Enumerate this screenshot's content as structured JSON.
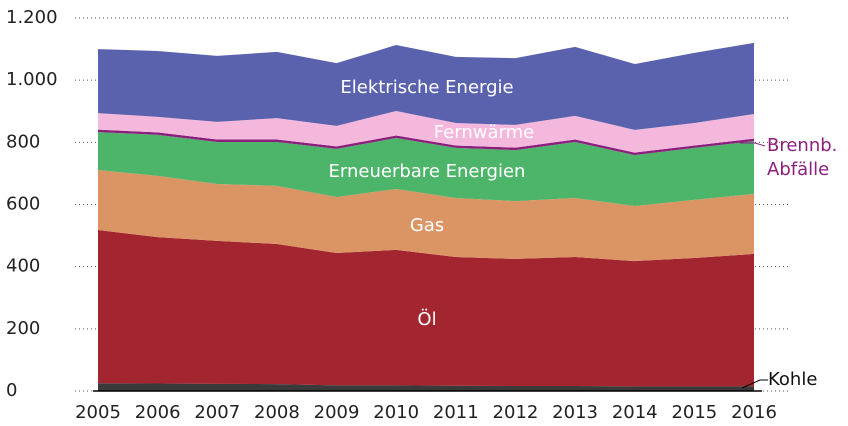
{
  "chart_data": {
    "type": "stacked_area",
    "categories": [
      "2005",
      "2006",
      "2007",
      "2008",
      "2009",
      "2010",
      "2011",
      "2012",
      "2013",
      "2014",
      "2015",
      "2016"
    ],
    "series": [
      {
        "name": "Kohle",
        "color": "#3a3a3a",
        "values": [
          25,
          24,
          23,
          22,
          18,
          18,
          17,
          16,
          16,
          15,
          15,
          15
        ]
      },
      {
        "name": "Öl",
        "color": "#a32530",
        "values": [
          493,
          471,
          460,
          451,
          426,
          436,
          414,
          409,
          415,
          403,
          413,
          426
        ]
      },
      {
        "name": "Gas",
        "color": "#db9564",
        "values": [
          193,
          197,
          183,
          187,
          180,
          196,
          190,
          186,
          190,
          177,
          187,
          193
        ]
      },
      {
        "name": "Erneuerbare Energien",
        "color": "#4db56a",
        "values": [
          122,
          132,
          135,
          141,
          155,
          164,
          161,
          164,
          180,
          164,
          167,
          170
        ]
      },
      {
        "name": "Brennb. Abfälle",
        "color": "#8c1f7e",
        "values": [
          8,
          8,
          8,
          8,
          8,
          8,
          8,
          8,
          8,
          8,
          8,
          8
        ]
      },
      {
        "name": "Fernwärme",
        "color": "#f4b8dc",
        "values": [
          53,
          50,
          57,
          69,
          66,
          79,
          72,
          73,
          76,
          73,
          72,
          79
        ]
      },
      {
        "name": "Elektrische Energie",
        "color": "#5a62ad",
        "values": [
          206,
          212,
          212,
          213,
          202,
          212,
          213,
          215,
          222,
          212,
          226,
          229
        ]
      }
    ],
    "ylim": [
      0,
      1200
    ],
    "yticks": [
      0,
      200,
      400,
      600,
      800,
      {
        "value": 1000,
        "label": "1.000"
      },
      {
        "value": 1200,
        "label": "1.200"
      }
    ],
    "grid": true
  }
}
